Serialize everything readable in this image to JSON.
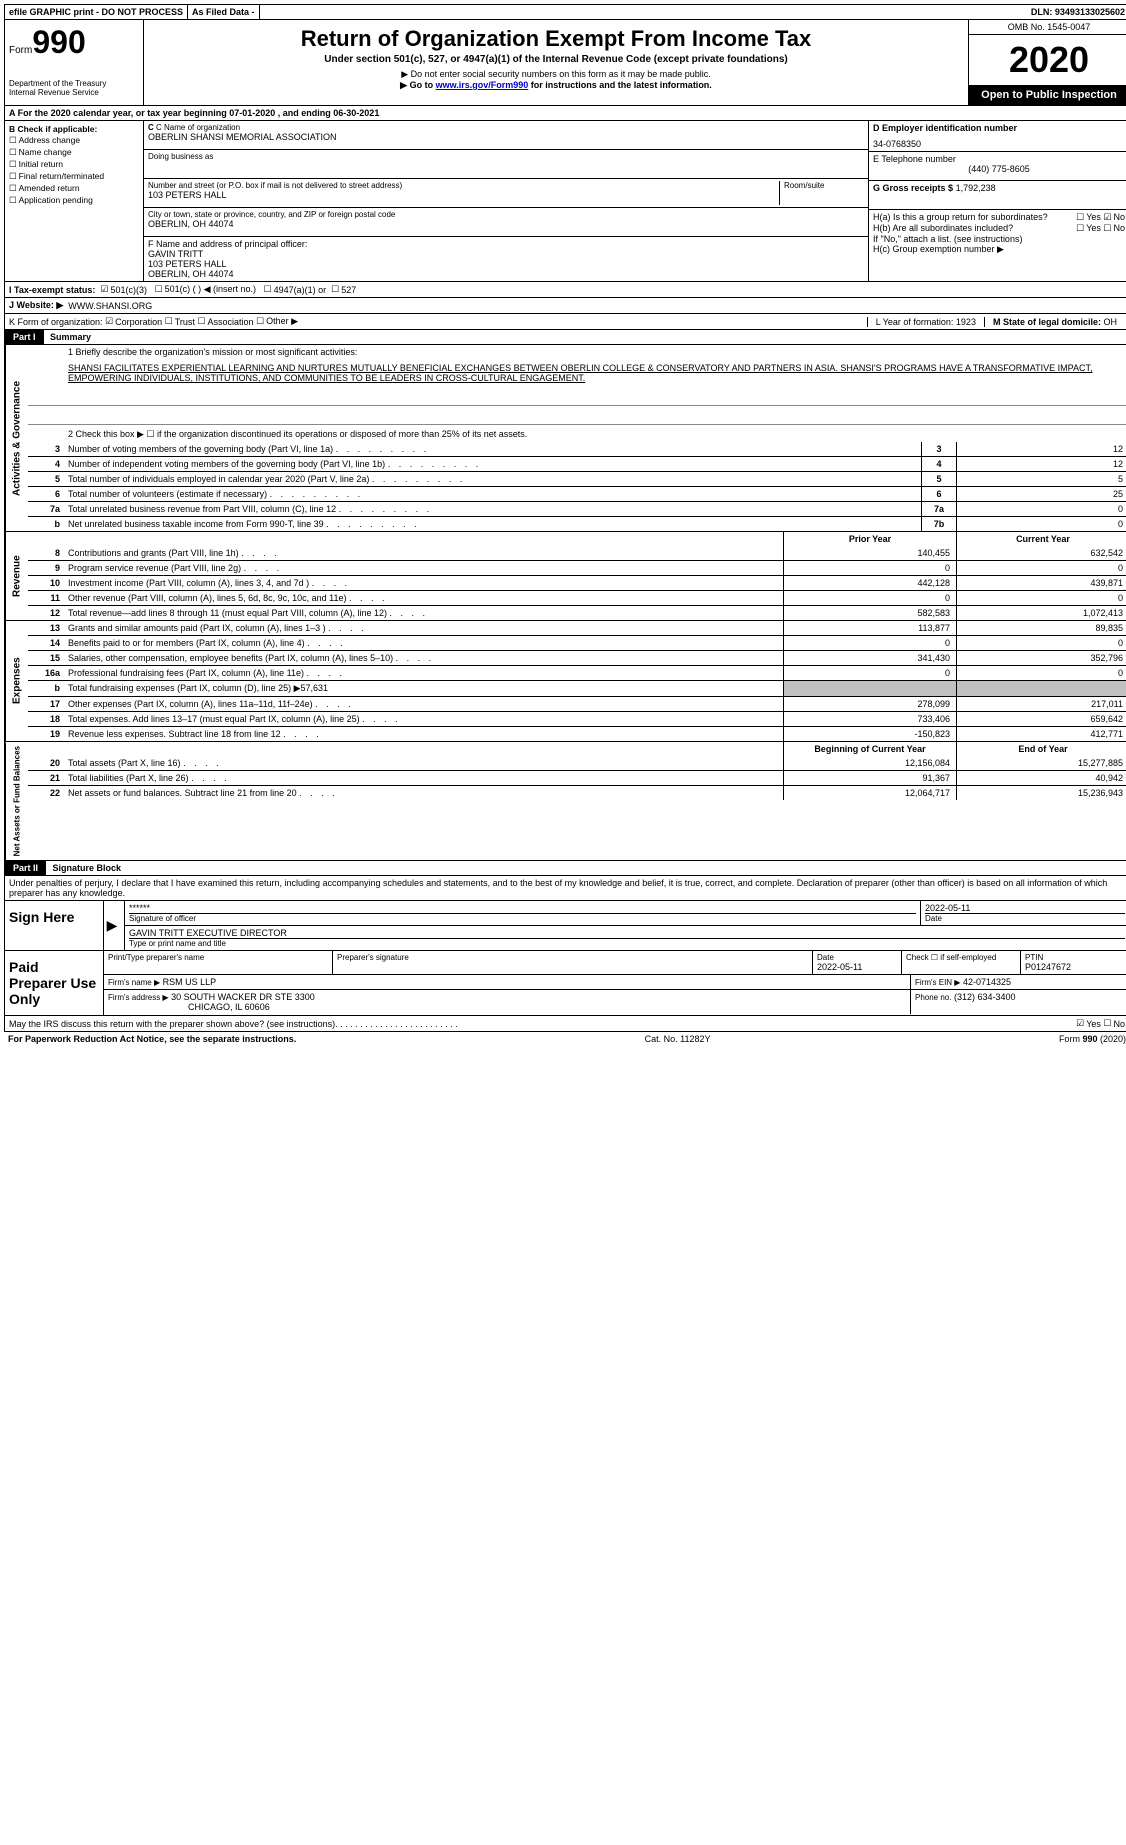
{
  "top_bar": {
    "item1": "efile GRAPHIC print - DO NOT PROCESS",
    "item2": "As Filed Data -",
    "item3": "DLN: 93493133025602"
  },
  "header": {
    "form_label": "Form",
    "form_num": "990",
    "dept": "Department of the Treasury",
    "irs": "Internal Revenue Service",
    "title": "Return of Organization Exempt From Income Tax",
    "subtitle": "Under section 501(c), 527, or 4947(a)(1) of the Internal Revenue Code (except private foundations)",
    "note1": "▶ Do not enter social security numbers on this form as it may be made public.",
    "note2_pre": "▶ Go to ",
    "note2_link": "www.irs.gov/Form990",
    "note2_post": " for instructions and the latest information.",
    "omb": "OMB No. 1545-0047",
    "year": "2020",
    "inspection": "Open to Public Inspection"
  },
  "row_a": "A  For the 2020 calendar year, or tax year beginning 07-01-2020  , and ending 06-30-2021",
  "section_b": {
    "check_label": "B Check if applicable:",
    "checks": [
      "Address change",
      "Name change",
      "Initial return",
      "Final return/terminated",
      "Amended return",
      "Application pending"
    ],
    "c_label": "C Name of organization",
    "org_name": "OBERLIN SHANSI MEMORIAL ASSOCIATION",
    "dba_label": "Doing business as",
    "addr_label": "Number and street (or P.O. box if mail is not delivered to street address)",
    "room_label": "Room/suite",
    "addr": "103 PETERS HALL",
    "city_label": "City or town, state or province, country, and ZIP or foreign postal code",
    "city": "OBERLIN, OH  44074",
    "f_label": "F  Name and address of principal officer:",
    "f_name": "GAVIN TRITT",
    "f_addr1": "103 PETERS HALL",
    "f_addr2": "OBERLIN, OH  44074",
    "d_label": "D Employer identification number",
    "ein": "34-0768350",
    "e_label": "E Telephone number",
    "phone": "(440) 775-8605",
    "g_label": "G Gross receipts $",
    "g_val": "1,792,238",
    "ha_label": "H(a)  Is this a group return for subordinates?",
    "hb_label": "H(b)  Are all subordinates included?",
    "h_note": "If \"No,\" attach a list. (see instructions)",
    "hc_label": "H(c)  Group exemption number ▶",
    "yes": "Yes",
    "no": "No"
  },
  "row_i": {
    "label": "I  Tax-exempt status:",
    "opt1": "501(c)(3)",
    "opt2": "501(c) (   ) ◀ (insert no.)",
    "opt3": "4947(a)(1) or",
    "opt4": "527"
  },
  "row_j": {
    "label": "J  Website: ▶",
    "val": "WWW.SHANSI.ORG"
  },
  "row_k": {
    "label": "K Form of organization:",
    "opts": [
      "Corporation",
      "Trust",
      "Association",
      "Other ▶"
    ],
    "l_label": "L Year of formation: ",
    "l_val": "1923",
    "m_label": "M State of legal domicile:",
    "m_val": "OH"
  },
  "part1": {
    "header": "Part I",
    "title": "Summary",
    "line1_label": "1  Briefly describe the organization's mission or most significant activities:",
    "mission": "SHANSI FACILITATES EXPERIENTIAL LEARNING AND NURTURES MUTUALLY BENEFICIAL EXCHANGES BETWEEN OBERLIN COLLEGE & CONSERVATORY AND PARTNERS IN ASIA. SHANSI'S PROGRAMS HAVE A TRANSFORMATIVE IMPACT, EMPOWERING INDIVIDUALS, INSTITUTIONS, AND COMMUNITIES TO BE LEADERS IN CROSS-CULTURAL ENGAGEMENT.",
    "line2": "2  Check this box ▶ ☐ if the organization discontinued its operations or disposed of more than 25% of its net assets.",
    "vert_ag": "Activities & Governance",
    "vert_rev": "Revenue",
    "vert_exp": "Expenses",
    "vert_na": "Net Assets or Fund Balances",
    "lines_ag": [
      {
        "n": "3",
        "t": "Number of voting members of the governing body (Part VI, line 1a)",
        "box": "3",
        "v": "12"
      },
      {
        "n": "4",
        "t": "Number of independent voting members of the governing body (Part VI, line 1b)",
        "box": "4",
        "v": "12"
      },
      {
        "n": "5",
        "t": "Total number of individuals employed in calendar year 2020 (Part V, line 2a)",
        "box": "5",
        "v": "5"
      },
      {
        "n": "6",
        "t": "Total number of volunteers (estimate if necessary)",
        "box": "6",
        "v": "25"
      },
      {
        "n": "7a",
        "t": "Total unrelated business revenue from Part VIII, column (C), line 12",
        "box": "7a",
        "v": "0"
      },
      {
        "n": "b",
        "t": "Net unrelated business taxable income from Form 990-T, line 39",
        "box": "7b",
        "v": "0"
      }
    ],
    "col_prior": "Prior Year",
    "col_current": "Current Year",
    "lines_rev": [
      {
        "n": "8",
        "t": "Contributions and grants (Part VIII, line 1h)",
        "p": "140,455",
        "c": "632,542"
      },
      {
        "n": "9",
        "t": "Program service revenue (Part VIII, line 2g)",
        "p": "0",
        "c": "0"
      },
      {
        "n": "10",
        "t": "Investment income (Part VIII, column (A), lines 3, 4, and 7d )",
        "p": "442,128",
        "c": "439,871"
      },
      {
        "n": "11",
        "t": "Other revenue (Part VIII, column (A), lines 5, 6d, 8c, 9c, 10c, and 11e)",
        "p": "0",
        "c": "0"
      },
      {
        "n": "12",
        "t": "Total revenue—add lines 8 through 11 (must equal Part VIII, column (A), line 12)",
        "p": "582,583",
        "c": "1,072,413"
      }
    ],
    "lines_exp": [
      {
        "n": "13",
        "t": "Grants and similar amounts paid (Part IX, column (A), lines 1–3 )",
        "p": "113,877",
        "c": "89,835"
      },
      {
        "n": "14",
        "t": "Benefits paid to or for members (Part IX, column (A), line 4)",
        "p": "0",
        "c": "0"
      },
      {
        "n": "15",
        "t": "Salaries, other compensation, employee benefits (Part IX, column (A), lines 5–10)",
        "p": "341,430",
        "c": "352,796"
      },
      {
        "n": "16a",
        "t": "Professional fundraising fees (Part IX, column (A), line 11e)",
        "p": "0",
        "c": "0"
      },
      {
        "n": "b",
        "t": "Total fundraising expenses (Part IX, column (D), line 25) ▶57,631",
        "p": "",
        "c": "",
        "shaded": true
      },
      {
        "n": "17",
        "t": "Other expenses (Part IX, column (A), lines 11a–11d, 11f–24e)",
        "p": "278,099",
        "c": "217,011"
      },
      {
        "n": "18",
        "t": "Total expenses. Add lines 13–17 (must equal Part IX, column (A), line 25)",
        "p": "733,406",
        "c": "659,642"
      },
      {
        "n": "19",
        "t": "Revenue less expenses. Subtract line 18 from line 12",
        "p": "-150,823",
        "c": "412,771"
      }
    ],
    "col_begin": "Beginning of Current Year",
    "col_end": "End of Year",
    "lines_na": [
      {
        "n": "20",
        "t": "Total assets (Part X, line 16)",
        "p": "12,156,084",
        "c": "15,277,885"
      },
      {
        "n": "21",
        "t": "Total liabilities (Part X, line 26)",
        "p": "91,367",
        "c": "40,942"
      },
      {
        "n": "22",
        "t": "Net assets or fund balances. Subtract line 21 from line 20",
        "p": "12,064,717",
        "c": "15,236,943"
      }
    ]
  },
  "part2": {
    "header": "Part II",
    "title": "Signature Block",
    "declaration": "Under penalties of perjury, I declare that I have examined this return, including accompanying schedules and statements, and to the best of my knowledge and belief, it is true, correct, and complete. Declaration of preparer (other than officer) is based on all information of which preparer has any knowledge."
  },
  "sign": {
    "here_label": "Sign Here",
    "stars": "******",
    "sig_label": "Signature of officer",
    "date1": "2022-05-11",
    "date_label": "Date",
    "officer": "GAVIN TRITT EXECUTIVE DIRECTOR",
    "type_label": "Type or print name and title"
  },
  "preparer": {
    "label": "Paid Preparer Use Only",
    "print_label": "Print/Type preparer's name",
    "sig_label": "Preparer's signature",
    "date_label": "Date",
    "date": "2022-05-11",
    "check_label": "Check ☐ if self-employed",
    "ptin_label": "PTIN",
    "ptin": "P01247672",
    "firm_name_label": "Firm's name    ▶",
    "firm_name": "RSM US LLP",
    "firm_ein_label": "Firm's EIN ▶",
    "firm_ein": "42-0714325",
    "firm_addr_label": "Firm's address ▶",
    "firm_addr1": "30 SOUTH WACKER DR STE 3300",
    "firm_addr2": "CHICAGO, IL  60606",
    "phone_label": "Phone no.",
    "phone": "(312) 634-3400"
  },
  "may_irs": "May the IRS discuss this return with the preparer shown above? (see instructions)",
  "footer": {
    "left": "For Paperwork Reduction Act Notice, see the separate instructions.",
    "mid": "Cat. No. 11282Y",
    "right": "Form 990 (2020)"
  }
}
